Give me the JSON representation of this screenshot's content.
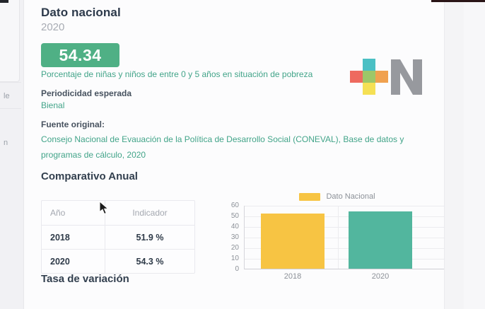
{
  "page": {
    "title": "Dato nacional",
    "subtitle_year": "2020",
    "badge_value": "54.34",
    "description": "Porcentaje de niñas y niños de entre 0 y 5 años en situación de pobreza",
    "periodicity_label": "Periodicidad esperada",
    "periodicity_value": "Bienal",
    "source_label": "Fuente original:",
    "source_value": "Consejo Nacional de Evauación de la Política de Desarrollo Social (CONEVAL), Base de datos y programas de cálculo, 2020",
    "comparison_title": "Comparativo Anual",
    "variation_title": "Tasa de variación"
  },
  "comparativo": {
    "headers": [
      "Año",
      "Indicador"
    ],
    "rows": [
      {
        "year": "2018",
        "indicator": "51.9 %"
      },
      {
        "year": "2020",
        "indicator": "54.3 %"
      }
    ]
  },
  "chart_data": {
    "type": "bar",
    "title": "",
    "categories": [
      "2018",
      "2020"
    ],
    "values": [
      51.9,
      54.3
    ],
    "bar_colors": [
      "#F7C443",
      "#52B69E"
    ],
    "legend": [
      {
        "label": "Dato Nacional",
        "color": "#F7C443"
      }
    ],
    "legend_position": "top",
    "xlabel": "",
    "ylabel": "",
    "ylim": [
      0,
      60
    ],
    "yticks": [
      0,
      10,
      20,
      30,
      40,
      50,
      60
    ],
    "grid": true
  },
  "logo": {
    "letter": "N",
    "letter_color": "#97999E",
    "plus_colors": {
      "top": "#4BC0C4",
      "left": "#EE6A5F",
      "center": "#9DC768",
      "right": "#F0A14F",
      "bottom": "#F5E054"
    }
  },
  "left_panel_fragments": [
    "le",
    "n"
  ],
  "colors": {
    "badge_bg": "#4FB085",
    "teal_text": "#42A489",
    "heading": "#2D3A4B"
  }
}
